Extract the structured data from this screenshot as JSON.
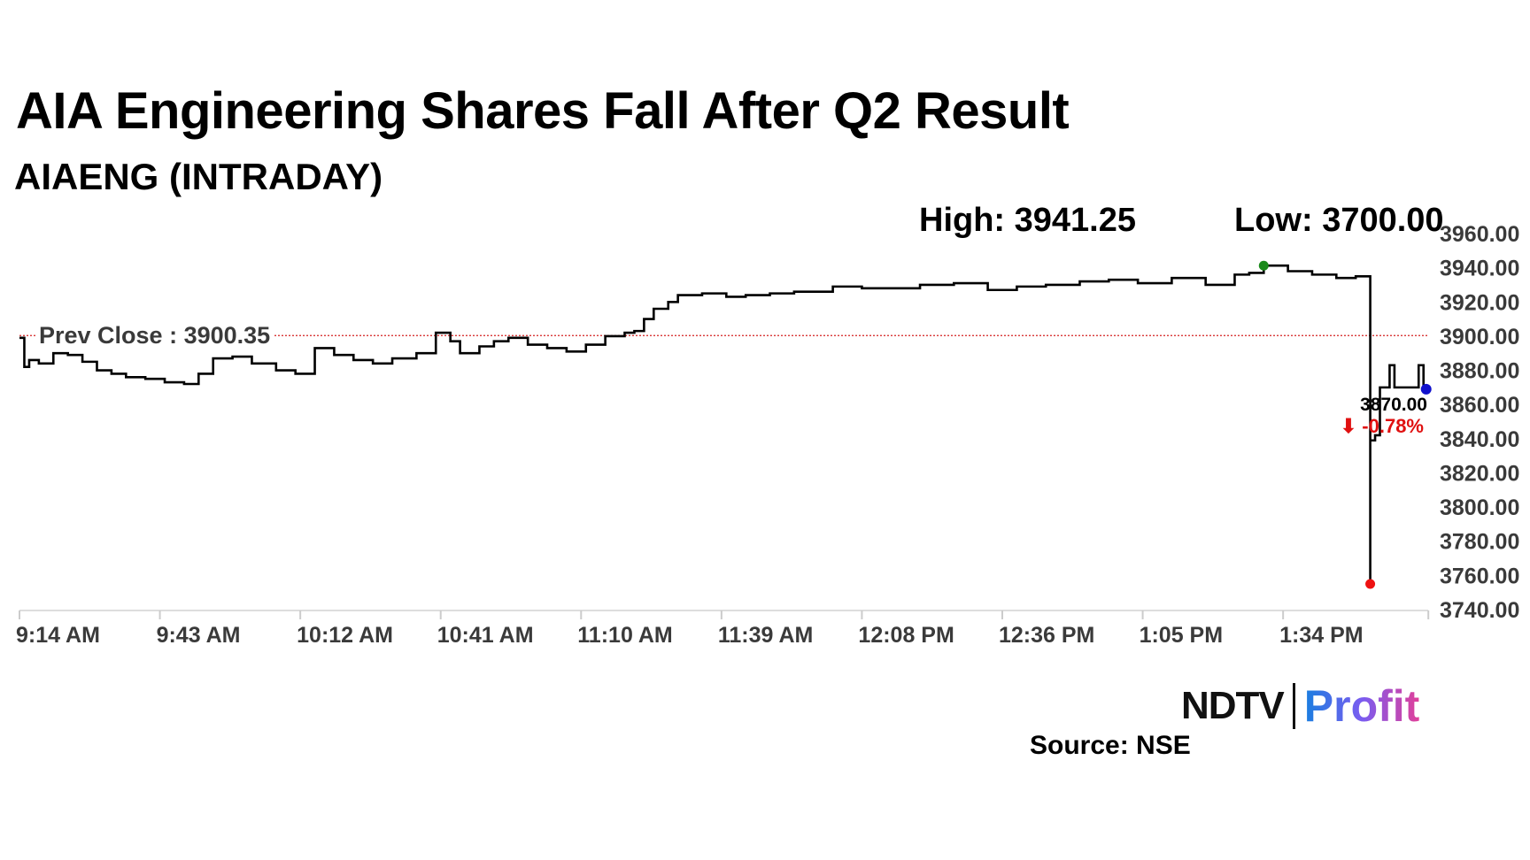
{
  "chart_data": {
    "type": "line",
    "title": "AIA Engineering Shares Fall After Q2 Result",
    "subtitle": "AIAENG (INTRADAY)",
    "high_label": "High: 3941.25",
    "low_label": "Low: 3700.00",
    "prev_close_label": "Prev Close : 3900.35",
    "prev_close": 3900.35,
    "last_price_label": "3870.00",
    "change_label": "⬇ -0.78%",
    "ylim": [
      3740,
      3960
    ],
    "y_ticks": [
      "3960.00",
      "3940.00",
      "3920.00",
      "3900.00",
      "3880.00",
      "3860.00",
      "3840.00",
      "3820.00",
      "3800.00",
      "3780.00",
      "3760.00",
      "3740.00"
    ],
    "x_ticks": [
      "9:14 AM",
      "9:43 AM",
      "10:12 AM",
      "10:41 AM",
      "11:10 AM",
      "11:39 AM",
      "12:08 PM",
      "12:36 PM",
      "1:05 PM",
      "1:34 PM"
    ],
    "xlim": [
      "09:14",
      "14:05"
    ],
    "grid": false,
    "series": [
      {
        "x": [
          "09:14",
          "09:15",
          "09:16",
          "09:18",
          "09:21",
          "09:24",
          "09:27",
          "09:30",
          "09:33",
          "09:36",
          "09:40",
          "09:44",
          "09:48",
          "09:51",
          "09:54",
          "09:58",
          "10:02",
          "10:07",
          "10:11",
          "10:15",
          "10:19",
          "10:23",
          "10:27",
          "10:31",
          "10:36",
          "10:40",
          "10:43",
          "10:45",
          "10:49",
          "10:52",
          "10:55",
          "10:59",
          "11:03",
          "11:07",
          "11:11",
          "11:15",
          "11:19",
          "11:21",
          "11:23",
          "11:25",
          "11:28",
          "11:30",
          "11:35",
          "11:40",
          "11:44",
          "11:49",
          "11:54",
          "12:02",
          "12:08",
          "12:14",
          "12:20",
          "12:27",
          "12:34",
          "12:40",
          "12:46",
          "12:53",
          "12:59",
          "13:05",
          "13:12",
          "13:19",
          "13:25",
          "13:28",
          "13:31",
          "13:36",
          "13:41",
          "13:46",
          "13:50",
          "13:52",
          "13:53",
          "13:53",
          "13:54",
          "13:55",
          "13:56",
          "13:57",
          "13:58",
          "14:01",
          "14:03",
          "14:04"
        ],
        "y": [
          3899,
          3882,
          3886,
          3884,
          3890,
          3889,
          3885,
          3880,
          3878,
          3876,
          3875,
          3873,
          3872,
          3878,
          3887,
          3888,
          3884,
          3880,
          3878,
          3893,
          3889,
          3886,
          3884,
          3887,
          3890,
          3902,
          3897,
          3890,
          3894,
          3897,
          3899,
          3895,
          3893,
          3891,
          3895,
          3900,
          3902,
          3903,
          3910,
          3916,
          3920,
          3924,
          3925,
          3923,
          3924,
          3925,
          3926,
          3929,
          3928,
          3928,
          3930,
          3931,
          3927,
          3929,
          3930,
          3932,
          3933,
          3931,
          3934,
          3930,
          3936,
          3937,
          3941.25,
          3938,
          3936,
          3934,
          3935,
          3935,
          3755,
          3839,
          3842,
          3870,
          3870,
          3883,
          3870,
          3870,
          3883,
          3870
        ]
      }
    ],
    "markers": {
      "high_color": "#1a8a1a",
      "low_color": "#ee1111",
      "last_color": "#1111cc"
    },
    "colors": {
      "line": "#000000",
      "prev_close": "#d42020",
      "change": "#e01010"
    }
  },
  "footer": {
    "logo_ndtv": "NDTV",
    "logo_profit": "Profit",
    "source": "Source: NSE"
  }
}
